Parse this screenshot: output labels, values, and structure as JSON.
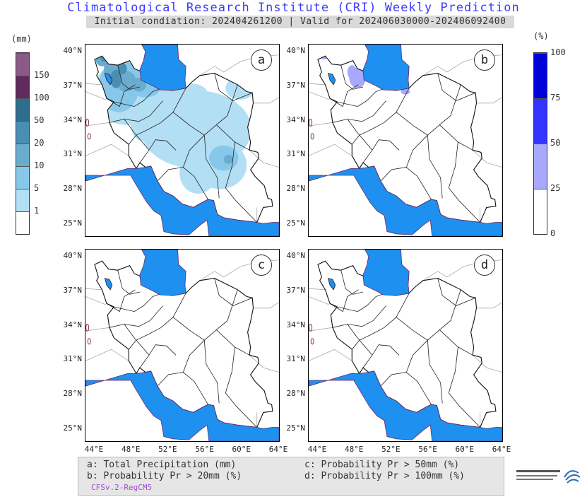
{
  "title": "Climatological Research Institute (CRI) Weekly Prediction",
  "subtitle": "Initial condiation: 202404261200 | Valid for 202406030000-202406092400",
  "left_colorbar": {
    "unit": "(mm)",
    "levels": [
      "1",
      "5",
      "10",
      "20",
      "50",
      "100",
      "150"
    ],
    "colors": [
      "#ffffff",
      "#b3dff5",
      "#87c8ea",
      "#6aaccd",
      "#4a8fb2",
      "#2d6d8e",
      "#5e2b5c",
      "#8a5a89"
    ]
  },
  "right_colorbar": {
    "unit": "(%)",
    "levels": [
      "0",
      "25",
      "50",
      "75",
      "100"
    ],
    "colors": [
      "#ffffff",
      "#a8a8ff",
      "#3434ff",
      "#0000d8"
    ]
  },
  "panels": [
    {
      "label": "a"
    },
    {
      "label": "b"
    },
    {
      "label": "c"
    },
    {
      "label": "d"
    }
  ],
  "lat_ticks": [
    "40°N",
    "37°N",
    "34°N",
    "31°N",
    "28°N",
    "25°N"
  ],
  "lon_ticks": [
    "44°E",
    "48°E",
    "52°E",
    "56°E",
    "60°E",
    "64°E"
  ],
  "legend": {
    "a": "a: Total Precipitation (mm)",
    "b": "b: Probability Pr > 20mm (%)",
    "c": "c: Probability Pr > 50mm (%)",
    "d": "d: Probability Pr > 100mm (%)",
    "model": "CFSv.2-RegCM5"
  },
  "colors": {
    "sea": "#1e90f0",
    "title": "#3a3aff",
    "model_text": "#a050d0"
  }
}
